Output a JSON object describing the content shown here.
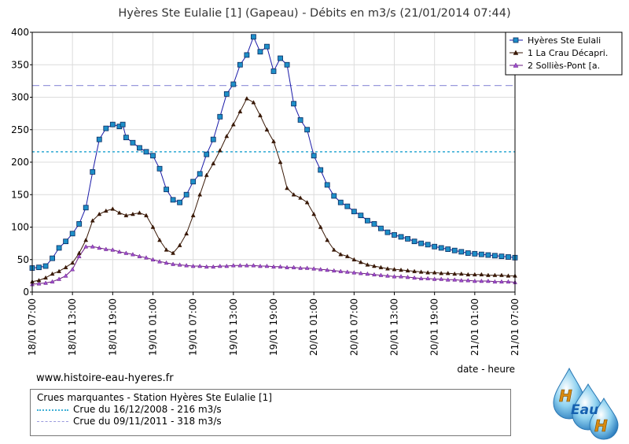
{
  "chart_data": {
    "type": "line",
    "title": "Hyères Ste Eulalie [1] (Gapeau) - Débits en m3/s (21/01/2014 07:44)",
    "xlabel": "date - heure",
    "ylabel": "",
    "ylim": [
      0,
      400
    ],
    "yticks": [
      0,
      50,
      100,
      150,
      200,
      250,
      300,
      350,
      400
    ],
    "x_range_hours": [
      0,
      72
    ],
    "x_ticks": [
      {
        "h": 0,
        "label": "18/01 07:00"
      },
      {
        "h": 6,
        "label": "18/01 13:00"
      },
      {
        "h": 12,
        "label": "18/01 19:00"
      },
      {
        "h": 18,
        "label": "19/01 01:00"
      },
      {
        "h": 24,
        "label": "19/01 07:00"
      },
      {
        "h": 30,
        "label": "19/01 13:00"
      },
      {
        "h": 36,
        "label": "19/01 19:00"
      },
      {
        "h": 42,
        "label": "20/01 01:00"
      },
      {
        "h": 48,
        "label": "20/01 07:00"
      },
      {
        "h": 54,
        "label": "20/01 13:00"
      },
      {
        "h": 60,
        "label": "20/01 19:00"
      },
      {
        "h": 66,
        "label": "21/01 01:00"
      },
      {
        "h": 72,
        "label": "21/01 07:00"
      }
    ],
    "grid": true,
    "legend_position": "top-right",
    "thresholds": [
      {
        "value": 216,
        "color": "#3fb0d6",
        "style": "dotted"
      },
      {
        "value": 318,
        "color": "#9999dd",
        "style": "dashed"
      }
    ],
    "series": [
      {
        "name": "Hyères Ste Eulali",
        "color": "#1a1aa8",
        "marker": "square",
        "marker_color": "#1e8fc8",
        "points": [
          [
            0,
            37
          ],
          [
            1,
            38
          ],
          [
            2,
            40
          ],
          [
            3,
            52
          ],
          [
            4,
            68
          ],
          [
            5,
            78
          ],
          [
            6,
            90
          ],
          [
            7,
            105
          ],
          [
            8,
            130
          ],
          [
            9,
            185
          ],
          [
            10,
            235
          ],
          [
            11,
            252
          ],
          [
            12,
            258
          ],
          [
            13,
            255
          ],
          [
            13.5,
            258
          ],
          [
            14,
            238
          ],
          [
            15,
            230
          ],
          [
            16,
            222
          ],
          [
            17,
            216
          ],
          [
            18,
            210
          ],
          [
            19,
            190
          ],
          [
            20,
            158
          ],
          [
            21,
            142
          ],
          [
            22,
            138
          ],
          [
            23,
            150
          ],
          [
            24,
            170
          ],
          [
            25,
            182
          ],
          [
            26,
            212
          ],
          [
            27,
            235
          ],
          [
            28,
            270
          ],
          [
            29,
            305
          ],
          [
            30,
            320
          ],
          [
            31,
            350
          ],
          [
            32,
            365
          ],
          [
            33,
            393
          ],
          [
            34,
            370
          ],
          [
            35,
            378
          ],
          [
            36,
            340
          ],
          [
            37,
            360
          ],
          [
            38,
            350
          ],
          [
            39,
            290
          ],
          [
            40,
            265
          ],
          [
            41,
            250
          ],
          [
            42,
            210
          ],
          [
            43,
            188
          ],
          [
            44,
            165
          ],
          [
            45,
            148
          ],
          [
            46,
            138
          ],
          [
            47,
            132
          ],
          [
            48,
            124
          ],
          [
            49,
            118
          ],
          [
            50,
            110
          ],
          [
            51,
            105
          ],
          [
            52,
            98
          ],
          [
            53,
            92
          ],
          [
            54,
            88
          ],
          [
            55,
            85
          ],
          [
            56,
            82
          ],
          [
            57,
            78
          ],
          [
            58,
            75
          ],
          [
            59,
            73
          ],
          [
            60,
            70
          ],
          [
            61,
            68
          ],
          [
            62,
            66
          ],
          [
            63,
            64
          ],
          [
            64,
            62
          ],
          [
            65,
            60
          ],
          [
            66,
            59
          ],
          [
            67,
            58
          ],
          [
            68,
            57
          ],
          [
            69,
            56
          ],
          [
            70,
            55
          ],
          [
            71,
            54
          ],
          [
            72,
            53
          ]
        ]
      },
      {
        "name": "1 La Crau Décapri.",
        "color": "#3a1a08",
        "marker": "triangle",
        "marker_color": "#3a1a08",
        "points": [
          [
            0,
            16
          ],
          [
            1,
            18
          ],
          [
            2,
            22
          ],
          [
            3,
            28
          ],
          [
            4,
            32
          ],
          [
            5,
            38
          ],
          [
            6,
            45
          ],
          [
            7,
            60
          ],
          [
            8,
            80
          ],
          [
            9,
            110
          ],
          [
            10,
            120
          ],
          [
            11,
            125
          ],
          [
            12,
            128
          ],
          [
            13,
            122
          ],
          [
            14,
            118
          ],
          [
            15,
            120
          ],
          [
            16,
            122
          ],
          [
            17,
            118
          ],
          [
            18,
            100
          ],
          [
            19,
            80
          ],
          [
            20,
            65
          ],
          [
            21,
            60
          ],
          [
            22,
            72
          ],
          [
            23,
            90
          ],
          [
            24,
            118
          ],
          [
            25,
            150
          ],
          [
            26,
            180
          ],
          [
            27,
            198
          ],
          [
            28,
            218
          ],
          [
            29,
            240
          ],
          [
            30,
            258
          ],
          [
            31,
            278
          ],
          [
            32,
            298
          ],
          [
            33,
            292
          ],
          [
            34,
            272
          ],
          [
            35,
            250
          ],
          [
            36,
            232
          ],
          [
            37,
            200
          ],
          [
            38,
            160
          ],
          [
            39,
            150
          ],
          [
            40,
            145
          ],
          [
            41,
            138
          ],
          [
            42,
            120
          ],
          [
            43,
            100
          ],
          [
            44,
            80
          ],
          [
            45,
            65
          ],
          [
            46,
            58
          ],
          [
            47,
            55
          ],
          [
            48,
            50
          ],
          [
            49,
            46
          ],
          [
            50,
            42
          ],
          [
            51,
            40
          ],
          [
            52,
            38
          ],
          [
            53,
            36
          ],
          [
            54,
            35
          ],
          [
            55,
            34
          ],
          [
            56,
            33
          ],
          [
            57,
            32
          ],
          [
            58,
            31
          ],
          [
            59,
            30
          ],
          [
            60,
            30
          ],
          [
            61,
            29
          ],
          [
            62,
            29
          ],
          [
            63,
            28
          ],
          [
            64,
            28
          ],
          [
            65,
            27
          ],
          [
            66,
            27
          ],
          [
            67,
            27
          ],
          [
            68,
            26
          ],
          [
            69,
            26
          ],
          [
            70,
            26
          ],
          [
            71,
            25
          ],
          [
            72,
            25
          ]
        ]
      },
      {
        "name": "2 Solliès-Pont [a.",
        "color": "#6a1a80",
        "marker": "triangle",
        "marker_color": "#9b4fd0",
        "points": [
          [
            0,
            12
          ],
          [
            1,
            13
          ],
          [
            2,
            14
          ],
          [
            3,
            16
          ],
          [
            4,
            20
          ],
          [
            5,
            25
          ],
          [
            6,
            35
          ],
          [
            7,
            55
          ],
          [
            8,
            70
          ],
          [
            9,
            70
          ],
          [
            10,
            68
          ],
          [
            11,
            66
          ],
          [
            12,
            65
          ],
          [
            13,
            62
          ],
          [
            14,
            60
          ],
          [
            15,
            58
          ],
          [
            16,
            55
          ],
          [
            17,
            53
          ],
          [
            18,
            50
          ],
          [
            19,
            47
          ],
          [
            20,
            45
          ],
          [
            21,
            43
          ],
          [
            22,
            42
          ],
          [
            23,
            41
          ],
          [
            24,
            40
          ],
          [
            25,
            40
          ],
          [
            26,
            39
          ],
          [
            27,
            39
          ],
          [
            28,
            40
          ],
          [
            29,
            40
          ],
          [
            30,
            41
          ],
          [
            31,
            41
          ],
          [
            32,
            41
          ],
          [
            33,
            41
          ],
          [
            34,
            40
          ],
          [
            35,
            40
          ],
          [
            36,
            39
          ],
          [
            37,
            39
          ],
          [
            38,
            38
          ],
          [
            39,
            38
          ],
          [
            40,
            37
          ],
          [
            41,
            37
          ],
          [
            42,
            36
          ],
          [
            43,
            35
          ],
          [
            44,
            34
          ],
          [
            45,
            33
          ],
          [
            46,
            32
          ],
          [
            47,
            31
          ],
          [
            48,
            30
          ],
          [
            49,
            29
          ],
          [
            50,
            28
          ],
          [
            51,
            27
          ],
          [
            52,
            26
          ],
          [
            53,
            25
          ],
          [
            54,
            24
          ],
          [
            55,
            24
          ],
          [
            56,
            23
          ],
          [
            57,
            22
          ],
          [
            58,
            21
          ],
          [
            59,
            21
          ],
          [
            60,
            20
          ],
          [
            61,
            20
          ],
          [
            62,
            19
          ],
          [
            63,
            19
          ],
          [
            64,
            18
          ],
          [
            65,
            18
          ],
          [
            66,
            17
          ],
          [
            67,
            17
          ],
          [
            68,
            17
          ],
          [
            69,
            16
          ],
          [
            70,
            16
          ],
          [
            71,
            16
          ],
          [
            72,
            15
          ]
        ]
      }
    ]
  },
  "footer": {
    "url": "www.histoire-eau-hyeres.fr",
    "floods_title": "Crues marquantes - Station Hyères Ste Eulalie [1]",
    "floods": [
      {
        "label": "Crue du 16/12/2008 - 216 m3/s",
        "color": "#3fb0d6",
        "style": "dotted"
      },
      {
        "label": "Crue du 09/11/2011 - 318 m3/s",
        "color": "#9999dd",
        "style": "dashed"
      }
    ],
    "logo_text": "Eau",
    "logo_letter_top": "H",
    "logo_letter_bottom": "H"
  }
}
